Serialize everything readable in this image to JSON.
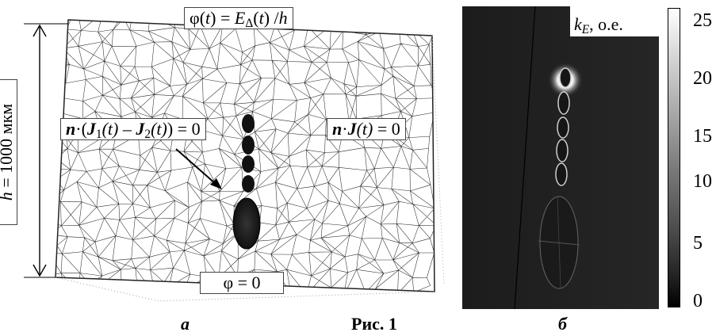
{
  "panel_a": {
    "top_bc": {
      "prefix": "φ(",
      "t": "t",
      "mid": ") = ",
      "E": "E",
      "sub": "Δ",
      "paren": "(",
      "t2": "t",
      "suffix": ") /",
      "h": "h"
    },
    "interface_bc": {
      "n": "n",
      "dot": "·(",
      "J1": "J",
      "sub1": "1",
      "t1": "(t)",
      "minus": " – ",
      "J2": "J",
      "sub2": "2",
      "t2": "(t)",
      "tail": ") = 0"
    },
    "outer_bc": {
      "n": "n",
      "dot": "·",
      "J": "J",
      "t": "(t)",
      "tail": " = 0"
    },
    "bottom_bc": {
      "text": "φ = 0"
    },
    "height": {
      "h": "h",
      "rest": " = 1000 мкм"
    }
  },
  "panel_b": {
    "label": {
      "k": "k",
      "sub": "E",
      "rest": ", о.е."
    },
    "colorbar_ticks": [
      "25",
      "20",
      "15",
      "10",
      "5",
      "0"
    ]
  },
  "captions": {
    "a": "а",
    "fig": "Рис. 1",
    "b": "б"
  }
}
